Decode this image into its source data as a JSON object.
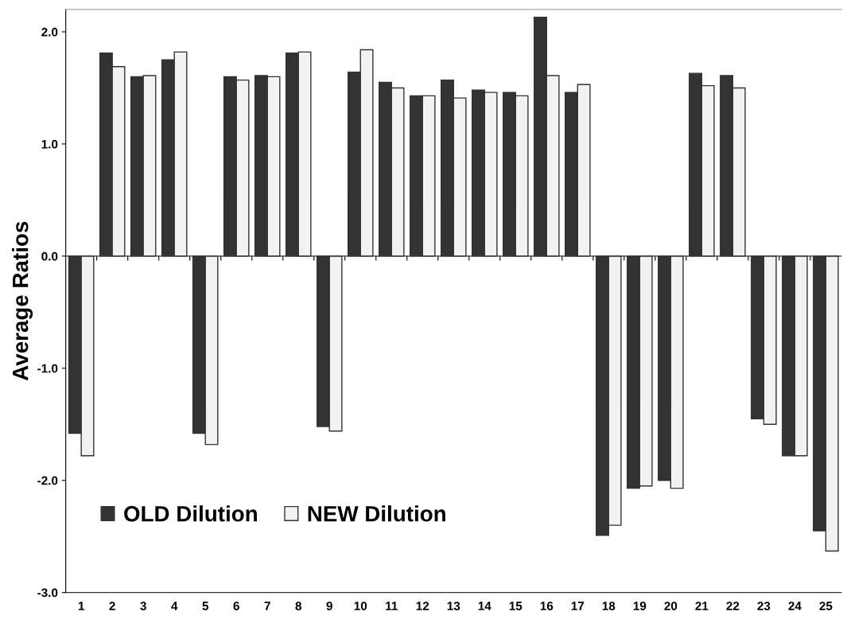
{
  "chart_data": {
    "type": "bar",
    "ylabel": "Average Ratios",
    "categories": [
      "1",
      "2",
      "3",
      "4",
      "5",
      "6",
      "7",
      "8",
      "9",
      "10",
      "11",
      "12",
      "13",
      "14",
      "15",
      "16",
      "17",
      "18",
      "19",
      "20",
      "21",
      "22",
      "23",
      "24",
      "25"
    ],
    "series": [
      {
        "name": "OLD Dilution",
        "color": "#333333",
        "values": [
          -1.58,
          1.81,
          1.6,
          1.75,
          -1.58,
          1.6,
          1.61,
          1.81,
          -1.52,
          1.64,
          1.55,
          1.43,
          1.57,
          1.48,
          1.46,
          2.13,
          1.46,
          -2.49,
          -2.07,
          -2.0,
          1.63,
          1.61,
          -1.45,
          -1.78,
          -2.45
        ]
      },
      {
        "name": "NEW Dilution",
        "color": "#f2f2f2",
        "values": [
          -1.78,
          1.69,
          1.61,
          1.82,
          -1.68,
          1.57,
          1.6,
          1.82,
          -1.56,
          1.84,
          1.5,
          1.43,
          1.41,
          1.46,
          1.43,
          1.61,
          1.53,
          -2.4,
          -2.05,
          -2.07,
          1.52,
          1.5,
          -1.5,
          -1.78,
          -2.63
        ]
      }
    ],
    "ylim": [
      -3.0,
      2.2
    ],
    "yticks": [
      {
        "value": 2,
        "label": "2.0"
      },
      {
        "value": 1,
        "label": "1.0"
      },
      {
        "value": 0,
        "label": "0.0"
      },
      {
        "value": -1,
        "label": "-1.0"
      },
      {
        "value": -2,
        "label": "-2.0"
      },
      {
        "value": -3,
        "label": "-3.0"
      }
    ],
    "legend": "bottom left"
  }
}
